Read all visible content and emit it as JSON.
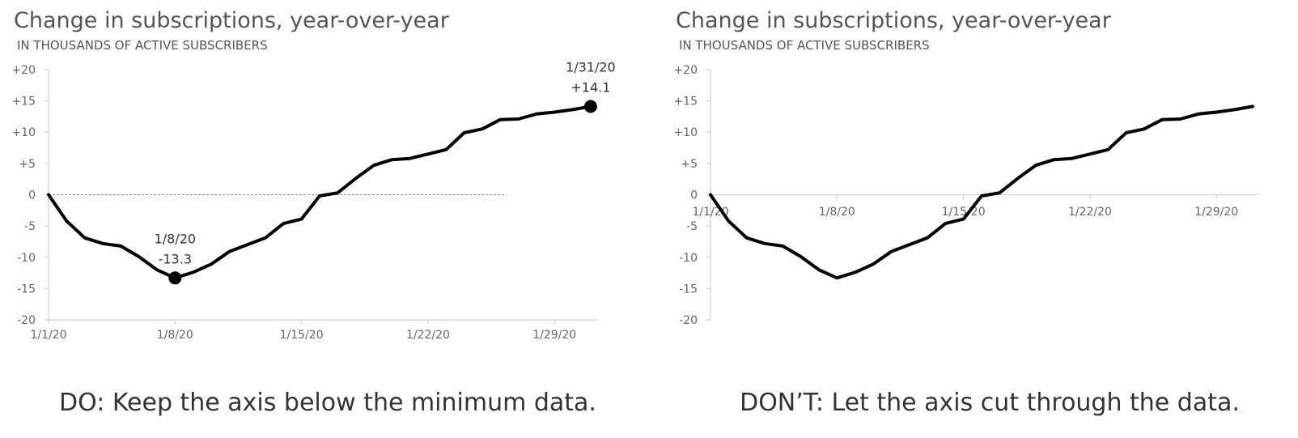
{
  "chart_data": [
    {
      "type": "line",
      "title": "Change in subscriptions, year-over-year",
      "subtitle": "IN THOUSANDS OF ACTIVE SUBSCRIBERS",
      "xlabel": "",
      "ylabel": "",
      "x_ticks": [
        "1/1/20",
        "1/8/20",
        "1/15/20",
        "1/22/20",
        "1/29/20"
      ],
      "y_ticks": [
        "+20",
        "+15",
        "+10",
        "+5",
        "0",
        "-5",
        "-10",
        "-15",
        "-20"
      ],
      "ylim": [
        -20,
        20
      ],
      "x_start": "1/1/20",
      "x_end": "1/31/20",
      "grid": false,
      "x_axis_position": "bottom",
      "zero_reference_line": true,
      "line_color": "#000000",
      "series": [
        {
          "values": [
            0,
            -4.2,
            -6.9,
            -7.8,
            -8.2,
            -9.9,
            -12.0,
            -13.3,
            -12.4,
            -11.1,
            -9.1,
            -8.0,
            -6.9,
            -4.6,
            -3.9,
            -0.2,
            0.3,
            2.6,
            4.7,
            5.6,
            5.8,
            6.5,
            7.2,
            9.9,
            10.5,
            12.0,
            12.1,
            12.9,
            13.2,
            13.6,
            14.1
          ]
        }
      ],
      "annotations": [
        {
          "date": "1/8/20",
          "value": "-13.3",
          "x": "1/8/20",
          "y": -13.3
        },
        {
          "date": "1/31/20",
          "value": "+14.1",
          "x": "1/31/20",
          "y": 14.1
        }
      ],
      "caption": "DO: Keep the axis below the minimum data."
    },
    {
      "type": "line",
      "title": "Change in subscriptions, year-over-year",
      "subtitle": "IN THOUSANDS OF ACTIVE SUBSCRIBERS",
      "xlabel": "",
      "ylabel": "",
      "x_ticks": [
        "1/1/20",
        "1/8/20",
        "1/15/20",
        "1/22/20",
        "1/29/20"
      ],
      "y_ticks": [
        "+20",
        "+15",
        "+10",
        "+5",
        "0",
        "-5",
        "-10",
        "-15",
        "-20"
      ],
      "ylim": [
        -20,
        20
      ],
      "x_start": "1/1/20",
      "x_end": "1/31/20",
      "grid": false,
      "x_axis_position": "zero",
      "zero_reference_line": false,
      "line_color": "#000000",
      "series": [
        {
          "values": [
            0,
            -4.2,
            -6.9,
            -7.8,
            -8.2,
            -9.9,
            -12.0,
            -13.3,
            -12.4,
            -11.1,
            -9.1,
            -8.0,
            -6.9,
            -4.6,
            -3.9,
            -0.2,
            0.3,
            2.6,
            4.7,
            5.6,
            5.8,
            6.5,
            7.2,
            9.9,
            10.5,
            12.0,
            12.1,
            12.9,
            13.2,
            13.6,
            14.1
          ]
        }
      ],
      "annotations": [],
      "caption": "DON’T: Let the axis cut through the data."
    }
  ]
}
